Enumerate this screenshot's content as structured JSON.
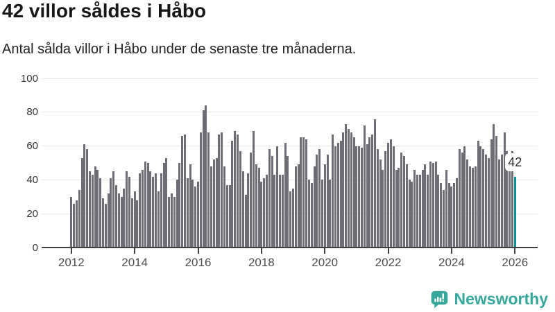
{
  "header": {
    "title": "42 villor såldes i Håbo",
    "subtitle": "Antal sålda villor i Håbo under de senaste tre månaderna."
  },
  "chart_data": {
    "type": "bar",
    "title": "42 villor såldes i Håbo",
    "subtitle": "Antal sålda villor i Håbo under de senaste tre månaderna.",
    "frequency": "monthly",
    "x_start": "2012-01",
    "x_end": "2026-01",
    "values": [
      30,
      26,
      28,
      34,
      53,
      61,
      58,
      45,
      43,
      48,
      46,
      41,
      29,
      26,
      32,
      41,
      45,
      37,
      32,
      30,
      35,
      45,
      42,
      29,
      33,
      28,
      44,
      46,
      51,
      50,
      45,
      42,
      44,
      33,
      44,
      50,
      53,
      30,
      32,
      30,
      40,
      50,
      66,
      67,
      41,
      49,
      40,
      36,
      39,
      68,
      81,
      84,
      68,
      48,
      52,
      53,
      67,
      68,
      48,
      37,
      37,
      63,
      69,
      67,
      57,
      45,
      31,
      44,
      56,
      69,
      49,
      47,
      39,
      41,
      43,
      58,
      54,
      43,
      60,
      43,
      43,
      62,
      54,
      33,
      35,
      48,
      49,
      65,
      65,
      64,
      40,
      38,
      48,
      55,
      58,
      40,
      49,
      55,
      40,
      67,
      60,
      62,
      63,
      68,
      73,
      70,
      68,
      65,
      60,
      60,
      59,
      72,
      61,
      65,
      67,
      76,
      58,
      52,
      46,
      57,
      62,
      64,
      60,
      46,
      47,
      56,
      54,
      49,
      40,
      39,
      46,
      43,
      43,
      46,
      49,
      43,
      51,
      50,
      51,
      43,
      38,
      34,
      46,
      38,
      36,
      38,
      41,
      58,
      56,
      60,
      52,
      48,
      47,
      48,
      63,
      60,
      58,
      55,
      53,
      64,
      73,
      66,
      52,
      55,
      68,
      57,
      54,
      57,
      42
    ],
    "highlight": {
      "index": 168,
      "value": 42,
      "label": "42",
      "color": "#00939c"
    },
    "bar_color": "#6e6d76",
    "grid_color": "#e7e7e7",
    "axis_color": "#404040",
    "ylim": [
      0,
      100
    ],
    "yticks": [
      0,
      20,
      40,
      60,
      80,
      100
    ],
    "xtick_labels": [
      "2012",
      "2014",
      "2016",
      "2018",
      "2020",
      "2022",
      "2024",
      "2026"
    ],
    "grid": true,
    "legend": "none"
  },
  "footer": {
    "brand": "Newsworthy",
    "brand_color": "#35a79c",
    "logo_icon": "bar-chart-speech-bubble"
  }
}
